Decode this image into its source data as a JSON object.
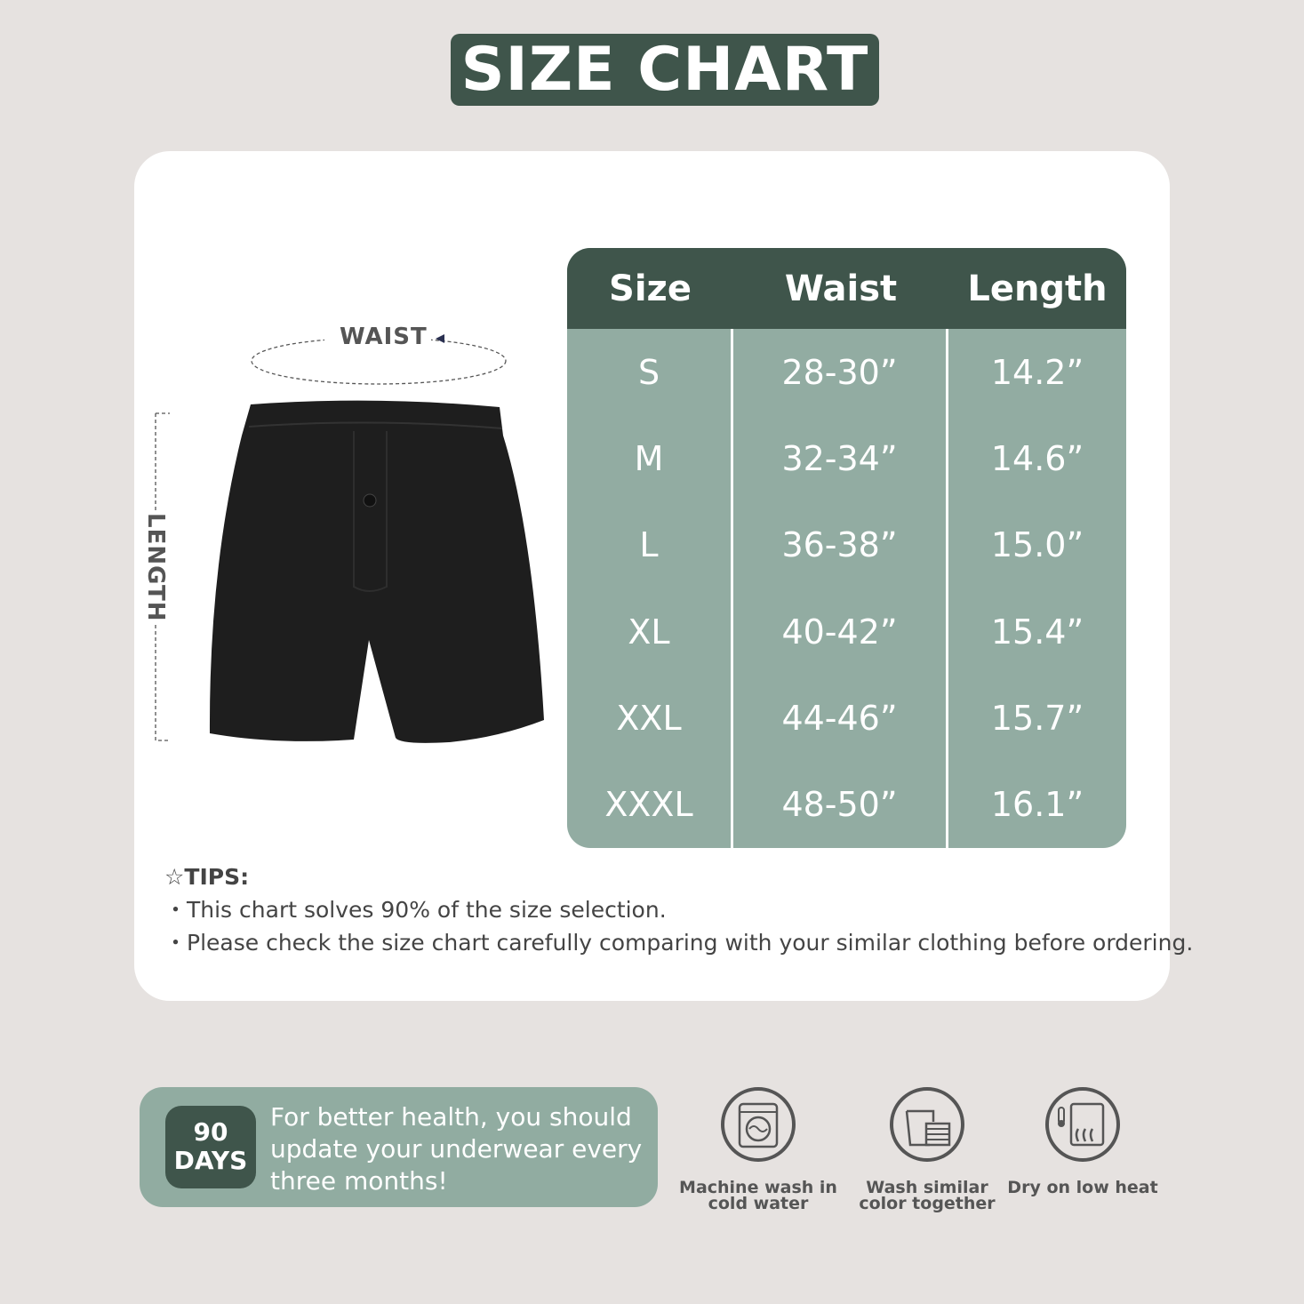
{
  "title": "SIZE CHART",
  "diagram": {
    "waist_label": "WAIST",
    "length_label": "LENGTH"
  },
  "table": {
    "headers": [
      "Size",
      "Waist",
      "Length"
    ],
    "rows": [
      [
        "S",
        "28-30”",
        "14.2”"
      ],
      [
        "M",
        "32-34”",
        "14.6”"
      ],
      [
        "L",
        "36-38”",
        "15.0”"
      ],
      [
        "XL",
        "40-42”",
        "15.4”"
      ],
      [
        "XXL",
        "44-46”",
        "15.7”"
      ],
      [
        "XXXL",
        "48-50”",
        "16.1”"
      ]
    ]
  },
  "tips": {
    "heading": "☆TIPS:",
    "items": [
      "・This chart solves 90% of the size selection.",
      "・Please check the size chart carefully comparing with your similar clothing before ordering."
    ]
  },
  "badge": {
    "number": "90",
    "unit": "DAYS",
    "text": "For better health, you should update your underwear every three months!"
  },
  "care": [
    {
      "icon": "washing-machine-icon",
      "label": "Machine wash in cold water"
    },
    {
      "icon": "laundry-basket-icon",
      "label": "Wash similar color together"
    },
    {
      "icon": "dryer-low-heat-icon",
      "label": "Dry on low heat"
    }
  ],
  "colors": {
    "primary": "#3f554b",
    "table_body": "#92aca2",
    "background": "#e6e2e0"
  }
}
